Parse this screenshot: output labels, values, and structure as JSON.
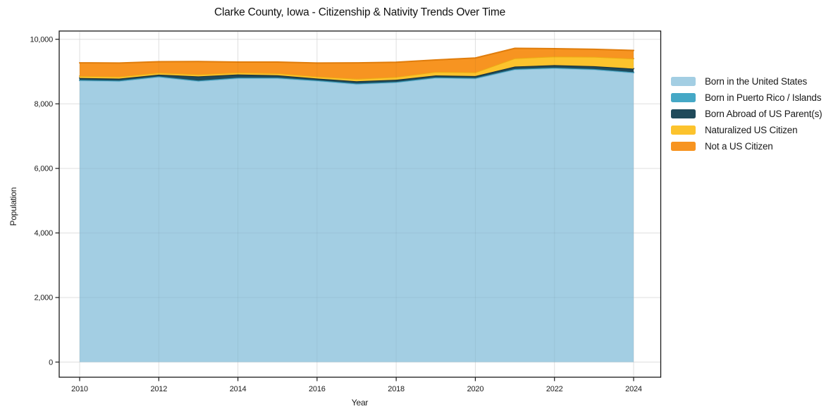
{
  "title": "Clarke County, Iowa - Citizenship & Nativity Trends Over Time",
  "chart_data": {
    "type": "area",
    "stacked": true,
    "title": "Clarke County, Iowa - Citizenship & Nativity Trends Over Time",
    "xlabel": "Year",
    "ylabel": "Population",
    "grid": true,
    "legend_position": "right",
    "xlim": [
      2009.3,
      2024.7
    ],
    "ylim": [
      0,
      10000
    ],
    "x": [
      2010,
      2011,
      2012,
      2013,
      2014,
      2015,
      2016,
      2017,
      2018,
      2019,
      2020,
      2021,
      2022,
      2023,
      2024
    ],
    "xticks": [
      2010,
      2012,
      2014,
      2016,
      2018,
      2020,
      2022,
      2024
    ],
    "xtick_labels": [
      "2010",
      "2012",
      "2014",
      "2016",
      "2018",
      "2020",
      "2022",
      "2024"
    ],
    "yticks": [
      0,
      2000,
      4000,
      6000,
      8000,
      10000
    ],
    "ytick_labels": [
      "0",
      "2,000",
      "4,000",
      "6,000",
      "8,000",
      "10,000"
    ],
    "series": [
      {
        "name": "Born in the United States",
        "color": "#a3cee3",
        "edge_color": "#8abfd9",
        "values": [
          8720,
          8700,
          8830,
          8700,
          8790,
          8790,
          8710,
          8610,
          8660,
          8800,
          8780,
          9060,
          9100,
          9060,
          8960
        ]
      },
      {
        "name": "Born in Puerto Rico / Islands",
        "color": "#45a8c6",
        "edge_color": "#3595b2",
        "values": [
          20,
          20,
          20,
          20,
          20,
          20,
          20,
          20,
          20,
          20,
          20,
          20,
          20,
          20,
          20
        ]
      },
      {
        "name": "Born Abroad of US Parent(s)",
        "color": "#1f4a5a",
        "edge_color": "#152f3b",
        "values": [
          60,
          60,
          55,
          130,
          100,
          75,
          55,
          70,
          65,
          60,
          60,
          75,
          80,
          85,
          110
        ]
      },
      {
        "name": "Naturalized US Citizen",
        "color": "#fcc32d",
        "edge_color": "#ecab14",
        "values": [
          60,
          60,
          60,
          60,
          60,
          60,
          60,
          75,
          85,
          110,
          115,
          255,
          265,
          290,
          310
        ]
      },
      {
        "name": "Not a US Citizen",
        "color": "#f79421",
        "edge_color": "#e07d0c",
        "values": [
          410,
          425,
          340,
          400,
          325,
          350,
          420,
          495,
          460,
          370,
          445,
          310,
          245,
          235,
          255
        ]
      }
    ]
  },
  "style": {
    "grid_color": "#ebebeb",
    "grid_overlay_color": "rgba(0,0,0,0.05)",
    "border_color": "#1a1a1a",
    "tick_color": "#1a1a1a"
  }
}
